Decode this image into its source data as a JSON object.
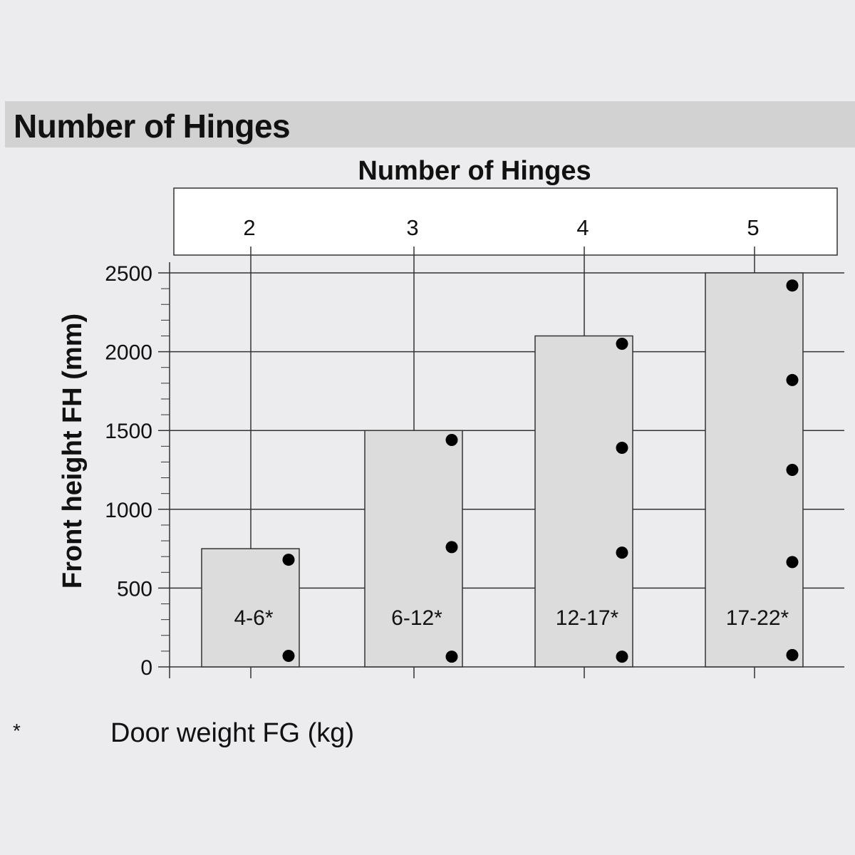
{
  "header": {
    "title": "Number of Hinges"
  },
  "chart_data": {
    "type": "bar",
    "title": "Number of Hinges",
    "ylabel": "Front height FH (mm)",
    "xlabel": "",
    "ylim": [
      0,
      2500
    ],
    "yticks": [
      0,
      500,
      1000,
      1500,
      2000,
      2500
    ],
    "grid": true,
    "categories": [
      "2",
      "3",
      "4",
      "5"
    ],
    "values": [
      750,
      1500,
      2100,
      2500
    ],
    "bar_labels": [
      "4-6*",
      "6-12*",
      "12-17*",
      "17-22*"
    ],
    "hinge_positions_mm": [
      [
        680,
        70
      ],
      [
        1440,
        760,
        65
      ],
      [
        2050,
        1390,
        725,
        65
      ],
      [
        2420,
        1820,
        1250,
        665,
        75
      ]
    ],
    "colors": {
      "bar": "#dcdcdc",
      "line": "#333333",
      "dot": "#000000",
      "background": "#ecebee",
      "band": "#d2d2d2"
    }
  },
  "footnote": {
    "symbol": "*",
    "text": "Door weight FG (kg)"
  }
}
